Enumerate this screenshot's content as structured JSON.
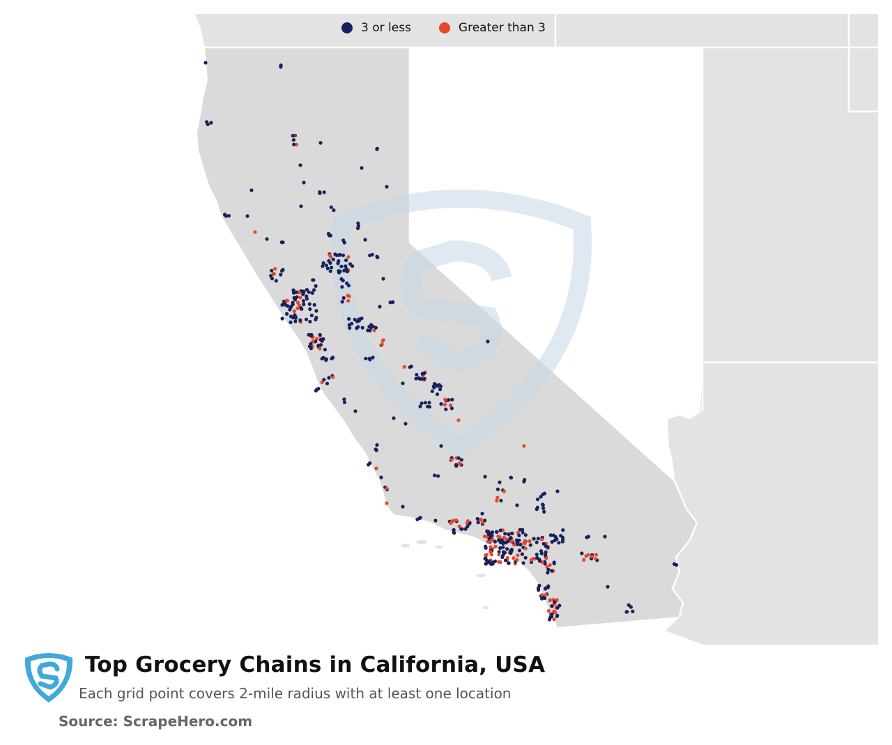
{
  "legend": {
    "items": [
      {
        "label": "3 or less",
        "color": "#17215c"
      },
      {
        "label": "Greater than 3",
        "color": "#e8472a"
      }
    ]
  },
  "footer": {
    "title": "Top Grocery Chains in California, USA",
    "subtitle": "Each grid point covers 2-mile radius with at least one location",
    "source": "Source: ScrapeHero.com"
  },
  "colors": {
    "land": "#e3e3e3",
    "ocean": "#ffffff",
    "border": "#ffffff",
    "low": "#17215c",
    "high": "#e8472a",
    "logo": "#3fa9dc",
    "watermark": "#c8d8e6"
  },
  "icons": {
    "logo": "scrapehero-shield-icon",
    "watermark": "scrapehero-shield-watermark-icon"
  }
}
